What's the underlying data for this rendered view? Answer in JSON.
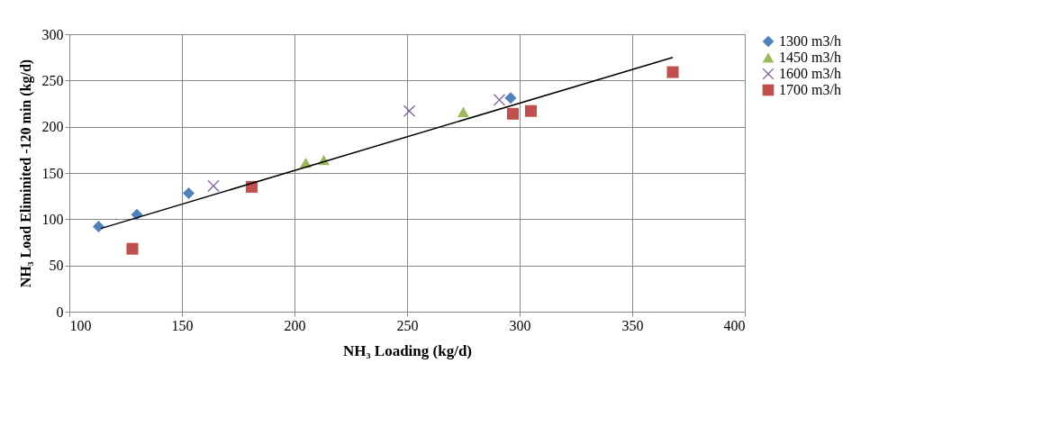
{
  "chart_data": {
    "type": "scatter",
    "xlabel": "NH₃ Loading (kg/d)",
    "ylabel": "NH₃ Load Eliminited -120 min (kg/d)",
    "xlim": [
      100,
      400
    ],
    "xticks": [
      100,
      150,
      200,
      250,
      300,
      350,
      400
    ],
    "ylim": [
      0,
      300
    ],
    "yticks": [
      0,
      50,
      100,
      150,
      200,
      250,
      300
    ],
    "grid": true,
    "legend": "right",
    "series": [
      {
        "name": "1300 m3/h",
        "color": "#4f81bd",
        "marker": "diamond",
        "x": [
          113,
          130,
          153,
          296
        ],
        "values": [
          92,
          105,
          128,
          231
        ]
      },
      {
        "name": "1450 m3/h",
        "color": "#9bbb59",
        "marker": "triangle",
        "x": [
          205,
          213,
          275
        ],
        "values": [
          161,
          164,
          216
        ]
      },
      {
        "name": "1600 m3/h",
        "color": "#8064a2",
        "marker": "cross",
        "x": [
          164,
          251,
          291
        ],
        "values": [
          136,
          217,
          229
        ]
      },
      {
        "name": "1700 m3/h",
        "color": "#c0504d",
        "marker": "square",
        "x": [
          128,
          181,
          297,
          305,
          368
        ],
        "values": [
          68,
          135,
          214,
          217,
          259
        ]
      },
      {
        "type": "line",
        "color": "#000000",
        "x": [
          114,
          368
        ],
        "values": [
          90,
          275
        ]
      }
    ]
  }
}
